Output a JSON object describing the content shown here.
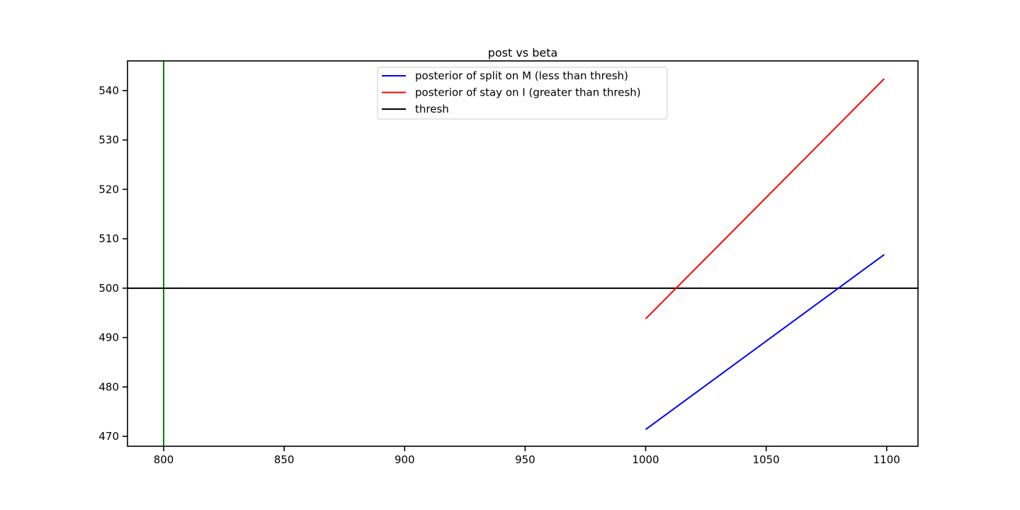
{
  "chart_data": {
    "type": "line",
    "title": "post vs beta",
    "xlabel": "",
    "ylabel": "",
    "xlim": [
      785,
      1113
    ],
    "ylim": [
      468,
      546
    ],
    "xticks": [
      800,
      850,
      900,
      950,
      1000,
      1050,
      1100
    ],
    "yticks": [
      470,
      480,
      490,
      500,
      510,
      520,
      530,
      540
    ],
    "grid": false,
    "legend_position": "top-center",
    "series": [
      {
        "name": "posterior of split on M (less than thresh)",
        "color": "#0000ff",
        "x": [
          1000,
          1099
        ],
        "y": [
          471.4,
          506.8
        ]
      },
      {
        "name": "posterior of stay on I (greater than thresh)",
        "color": "#ff0000",
        "x": [
          1000,
          1099
        ],
        "y": [
          493.8,
          542.4
        ]
      }
    ],
    "hlines": [
      {
        "name": "thresh",
        "y": 500,
        "color": "#000000"
      }
    ],
    "vlines": [
      {
        "x": 800,
        "color": "#008000"
      }
    ]
  }
}
